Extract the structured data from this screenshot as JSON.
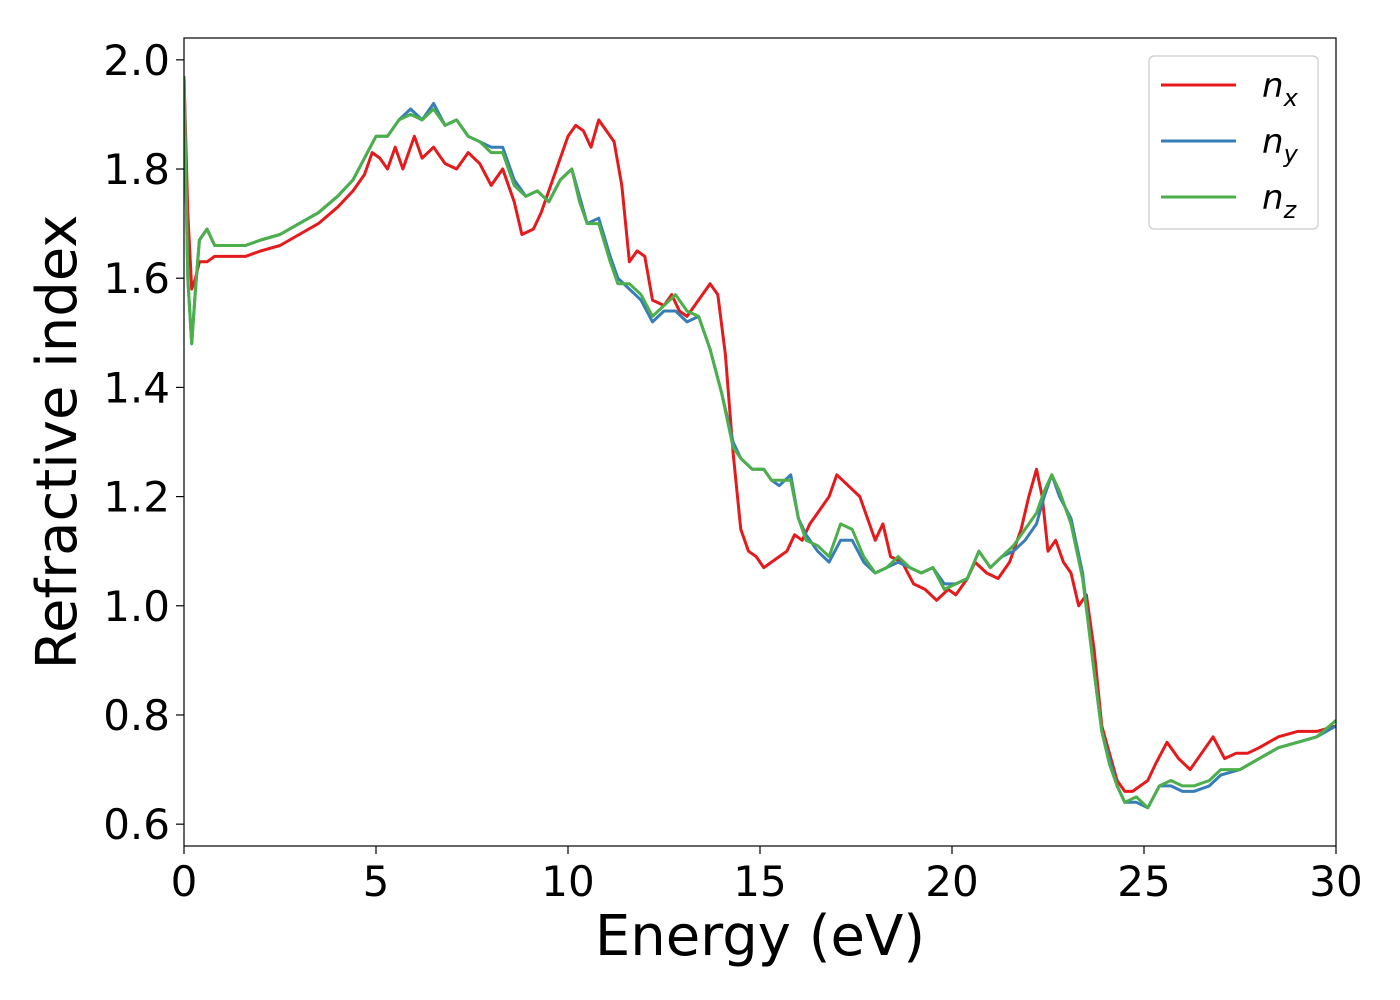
{
  "chart_data": {
    "type": "line",
    "xlabel": "Energy (eV)",
    "ylabel": "Refractive index",
    "xlim": [
      0,
      30
    ],
    "ylim": [
      0.56,
      2.04
    ],
    "xticks": [
      "0",
      "5",
      "10",
      "15",
      "20",
      "25",
      "30"
    ],
    "yticks": [
      "0.6",
      "0.8",
      "1.0",
      "1.2",
      "1.4",
      "1.6",
      "1.8",
      "2.0"
    ],
    "grid": false,
    "legend_position": "top-right",
    "series": [
      {
        "name": "n",
        "subscript": "x",
        "color": "#e41a1c",
        "points": [
          [
            0,
            1.97
          ],
          [
            0.1,
            1.72
          ],
          [
            0.2,
            1.58
          ],
          [
            0.3,
            1.6
          ],
          [
            0.4,
            1.63
          ],
          [
            0.6,
            1.63
          ],
          [
            0.8,
            1.64
          ],
          [
            1.2,
            1.64
          ],
          [
            1.6,
            1.64
          ],
          [
            2,
            1.65
          ],
          [
            2.5,
            1.66
          ],
          [
            3,
            1.68
          ],
          [
            3.5,
            1.7
          ],
          [
            4,
            1.73
          ],
          [
            4.4,
            1.76
          ],
          [
            4.7,
            1.79
          ],
          [
            4.9,
            1.83
          ],
          [
            5.1,
            1.82
          ],
          [
            5.3,
            1.8
          ],
          [
            5.5,
            1.84
          ],
          [
            5.7,
            1.8
          ],
          [
            6,
            1.86
          ],
          [
            6.2,
            1.82
          ],
          [
            6.5,
            1.84
          ],
          [
            6.8,
            1.81
          ],
          [
            7.1,
            1.8
          ],
          [
            7.4,
            1.83
          ],
          [
            7.7,
            1.81
          ],
          [
            8,
            1.77
          ],
          [
            8.3,
            1.8
          ],
          [
            8.6,
            1.74
          ],
          [
            8.8,
            1.68
          ],
          [
            9.1,
            1.69
          ],
          [
            9.3,
            1.72
          ],
          [
            9.5,
            1.76
          ],
          [
            9.7,
            1.8
          ],
          [
            10,
            1.86
          ],
          [
            10.2,
            1.88
          ],
          [
            10.4,
            1.87
          ],
          [
            10.6,
            1.84
          ],
          [
            10.8,
            1.89
          ],
          [
            11,
            1.87
          ],
          [
            11.2,
            1.85
          ],
          [
            11.4,
            1.77
          ],
          [
            11.6,
            1.63
          ],
          [
            11.8,
            1.65
          ],
          [
            12,
            1.64
          ],
          [
            12.2,
            1.56
          ],
          [
            12.5,
            1.55
          ],
          [
            12.7,
            1.57
          ],
          [
            12.9,
            1.54
          ],
          [
            13.1,
            1.53
          ],
          [
            13.3,
            1.55
          ],
          [
            13.5,
            1.57
          ],
          [
            13.7,
            1.59
          ],
          [
            13.9,
            1.57
          ],
          [
            14.1,
            1.46
          ],
          [
            14.3,
            1.28
          ],
          [
            14.5,
            1.14
          ],
          [
            14.7,
            1.1
          ],
          [
            14.9,
            1.09
          ],
          [
            15.1,
            1.07
          ],
          [
            15.3,
            1.08
          ],
          [
            15.5,
            1.09
          ],
          [
            15.7,
            1.1
          ],
          [
            15.9,
            1.13
          ],
          [
            16.1,
            1.12
          ],
          [
            16.3,
            1.15
          ],
          [
            16.5,
            1.17
          ],
          [
            16.8,
            1.2
          ],
          [
            17,
            1.24
          ],
          [
            17.3,
            1.22
          ],
          [
            17.6,
            1.2
          ],
          [
            17.8,
            1.16
          ],
          [
            18,
            1.12
          ],
          [
            18.2,
            1.15
          ],
          [
            18.4,
            1.09
          ],
          [
            18.7,
            1.08
          ],
          [
            19,
            1.04
          ],
          [
            19.3,
            1.03
          ],
          [
            19.6,
            1.01
          ],
          [
            19.9,
            1.03
          ],
          [
            20.1,
            1.02
          ],
          [
            20.4,
            1.05
          ],
          [
            20.6,
            1.08
          ],
          [
            20.9,
            1.06
          ],
          [
            21.2,
            1.05
          ],
          [
            21.5,
            1.08
          ],
          [
            21.8,
            1.14
          ],
          [
            22,
            1.2
          ],
          [
            22.2,
            1.25
          ],
          [
            22.35,
            1.2
          ],
          [
            22.5,
            1.1
          ],
          [
            22.7,
            1.12
          ],
          [
            22.9,
            1.08
          ],
          [
            23.1,
            1.06
          ],
          [
            23.3,
            1.0
          ],
          [
            23.5,
            1.02
          ],
          [
            23.7,
            0.92
          ],
          [
            23.9,
            0.78
          ],
          [
            24.1,
            0.73
          ],
          [
            24.3,
            0.68
          ],
          [
            24.5,
            0.66
          ],
          [
            24.7,
            0.66
          ],
          [
            24.9,
            0.67
          ],
          [
            25.1,
            0.68
          ],
          [
            25.3,
            0.71
          ],
          [
            25.6,
            0.75
          ],
          [
            25.9,
            0.72
          ],
          [
            26.2,
            0.7
          ],
          [
            26.5,
            0.73
          ],
          [
            26.8,
            0.76
          ],
          [
            27.1,
            0.72
          ],
          [
            27.4,
            0.73
          ],
          [
            27.7,
            0.73
          ],
          [
            28,
            0.74
          ],
          [
            28.5,
            0.76
          ],
          [
            29,
            0.77
          ],
          [
            29.5,
            0.77
          ],
          [
            30,
            0.78
          ]
        ]
      },
      {
        "name": "n",
        "subscript": "y",
        "color": "#377eb8",
        "points": [
          [
            0,
            1.97
          ],
          [
            0.1,
            1.6
          ],
          [
            0.2,
            1.48
          ],
          [
            0.3,
            1.58
          ],
          [
            0.4,
            1.67
          ],
          [
            0.6,
            1.69
          ],
          [
            0.8,
            1.66
          ],
          [
            1.2,
            1.66
          ],
          [
            1.6,
            1.66
          ],
          [
            2,
            1.67
          ],
          [
            2.5,
            1.68
          ],
          [
            3,
            1.7
          ],
          [
            3.5,
            1.72
          ],
          [
            4,
            1.75
          ],
          [
            4.4,
            1.78
          ],
          [
            4.7,
            1.82
          ],
          [
            5,
            1.86
          ],
          [
            5.3,
            1.86
          ],
          [
            5.6,
            1.89
          ],
          [
            5.9,
            1.91
          ],
          [
            6.2,
            1.89
          ],
          [
            6.5,
            1.92
          ],
          [
            6.8,
            1.88
          ],
          [
            7.1,
            1.89
          ],
          [
            7.4,
            1.86
          ],
          [
            7.7,
            1.85
          ],
          [
            8,
            1.84
          ],
          [
            8.3,
            1.84
          ],
          [
            8.6,
            1.78
          ],
          [
            8.9,
            1.75
          ],
          [
            9.2,
            1.76
          ],
          [
            9.5,
            1.74
          ],
          [
            9.8,
            1.78
          ],
          [
            10.1,
            1.8
          ],
          [
            10.3,
            1.75
          ],
          [
            10.5,
            1.7
          ],
          [
            10.8,
            1.71
          ],
          [
            11.1,
            1.64
          ],
          [
            11.3,
            1.6
          ],
          [
            11.6,
            1.58
          ],
          [
            11.9,
            1.56
          ],
          [
            12.2,
            1.52
          ],
          [
            12.5,
            1.54
          ],
          [
            12.8,
            1.54
          ],
          [
            13.1,
            1.52
          ],
          [
            13.4,
            1.53
          ],
          [
            13.7,
            1.47
          ],
          [
            14,
            1.39
          ],
          [
            14.3,
            1.3
          ],
          [
            14.5,
            1.27
          ],
          [
            14.8,
            1.25
          ],
          [
            15.1,
            1.25
          ],
          [
            15.3,
            1.23
          ],
          [
            15.5,
            1.22
          ],
          [
            15.8,
            1.24
          ],
          [
            16,
            1.16
          ],
          [
            16.2,
            1.13
          ],
          [
            16.5,
            1.1
          ],
          [
            16.8,
            1.08
          ],
          [
            17.1,
            1.12
          ],
          [
            17.4,
            1.12
          ],
          [
            17.7,
            1.08
          ],
          [
            18,
            1.06
          ],
          [
            18.3,
            1.07
          ],
          [
            18.6,
            1.08
          ],
          [
            18.9,
            1.07
          ],
          [
            19.2,
            1.06
          ],
          [
            19.5,
            1.07
          ],
          [
            19.8,
            1.04
          ],
          [
            20.1,
            1.04
          ],
          [
            20.4,
            1.05
          ],
          [
            20.7,
            1.1
          ],
          [
            21,
            1.07
          ],
          [
            21.3,
            1.09
          ],
          [
            21.6,
            1.1
          ],
          [
            21.9,
            1.12
          ],
          [
            22.2,
            1.15
          ],
          [
            22.4,
            1.2
          ],
          [
            22.6,
            1.24
          ],
          [
            22.8,
            1.2
          ],
          [
            23.1,
            1.16
          ],
          [
            23.4,
            1.06
          ],
          [
            23.7,
            0.88
          ],
          [
            23.9,
            0.77
          ],
          [
            24.1,
            0.72
          ],
          [
            24.3,
            0.67
          ],
          [
            24.5,
            0.64
          ],
          [
            24.8,
            0.64
          ],
          [
            25.1,
            0.63
          ],
          [
            25.4,
            0.67
          ],
          [
            25.7,
            0.67
          ],
          [
            26,
            0.66
          ],
          [
            26.3,
            0.66
          ],
          [
            26.7,
            0.67
          ],
          [
            27,
            0.69
          ],
          [
            27.5,
            0.7
          ],
          [
            28,
            0.72
          ],
          [
            28.5,
            0.74
          ],
          [
            29,
            0.75
          ],
          [
            29.5,
            0.76
          ],
          [
            30,
            0.78
          ]
        ]
      },
      {
        "name": "n",
        "subscript": "z",
        "color": "#4daf4a",
        "points": [
          [
            0,
            1.97
          ],
          [
            0.1,
            1.6
          ],
          [
            0.2,
            1.48
          ],
          [
            0.3,
            1.58
          ],
          [
            0.4,
            1.67
          ],
          [
            0.6,
            1.69
          ],
          [
            0.8,
            1.66
          ],
          [
            1.2,
            1.66
          ],
          [
            1.6,
            1.66
          ],
          [
            2,
            1.67
          ],
          [
            2.5,
            1.68
          ],
          [
            3,
            1.7
          ],
          [
            3.5,
            1.72
          ],
          [
            4,
            1.75
          ],
          [
            4.4,
            1.78
          ],
          [
            4.7,
            1.82
          ],
          [
            5,
            1.86
          ],
          [
            5.3,
            1.86
          ],
          [
            5.6,
            1.89
          ],
          [
            5.9,
            1.9
          ],
          [
            6.2,
            1.89
          ],
          [
            6.5,
            1.91
          ],
          [
            6.8,
            1.88
          ],
          [
            7.1,
            1.89
          ],
          [
            7.4,
            1.86
          ],
          [
            7.7,
            1.85
          ],
          [
            8,
            1.83
          ],
          [
            8.3,
            1.83
          ],
          [
            8.6,
            1.77
          ],
          [
            8.9,
            1.75
          ],
          [
            9.2,
            1.76
          ],
          [
            9.5,
            1.74
          ],
          [
            9.8,
            1.78
          ],
          [
            10.1,
            1.8
          ],
          [
            10.3,
            1.74
          ],
          [
            10.5,
            1.7
          ],
          [
            10.8,
            1.7
          ],
          [
            11.1,
            1.63
          ],
          [
            11.3,
            1.59
          ],
          [
            11.6,
            1.59
          ],
          [
            11.9,
            1.57
          ],
          [
            12.2,
            1.53
          ],
          [
            12.5,
            1.55
          ],
          [
            12.8,
            1.57
          ],
          [
            13.1,
            1.54
          ],
          [
            13.4,
            1.53
          ],
          [
            13.7,
            1.47
          ],
          [
            14,
            1.39
          ],
          [
            14.3,
            1.29
          ],
          [
            14.5,
            1.27
          ],
          [
            14.8,
            1.25
          ],
          [
            15.1,
            1.25
          ],
          [
            15.3,
            1.23
          ],
          [
            15.5,
            1.23
          ],
          [
            15.8,
            1.23
          ],
          [
            16,
            1.16
          ],
          [
            16.2,
            1.12
          ],
          [
            16.5,
            1.11
          ],
          [
            16.8,
            1.09
          ],
          [
            17.1,
            1.15
          ],
          [
            17.4,
            1.14
          ],
          [
            17.7,
            1.09
          ],
          [
            18,
            1.06
          ],
          [
            18.3,
            1.07
          ],
          [
            18.6,
            1.09
          ],
          [
            18.9,
            1.07
          ],
          [
            19.2,
            1.06
          ],
          [
            19.5,
            1.07
          ],
          [
            19.8,
            1.03
          ],
          [
            20.1,
            1.04
          ],
          [
            20.4,
            1.05
          ],
          [
            20.7,
            1.1
          ],
          [
            21,
            1.07
          ],
          [
            21.3,
            1.09
          ],
          [
            21.6,
            1.11
          ],
          [
            21.9,
            1.14
          ],
          [
            22.2,
            1.17
          ],
          [
            22.4,
            1.21
          ],
          [
            22.6,
            1.24
          ],
          [
            22.8,
            1.21
          ],
          [
            23.1,
            1.15
          ],
          [
            23.4,
            1.05
          ],
          [
            23.7,
            0.88
          ],
          [
            23.9,
            0.77
          ],
          [
            24.1,
            0.71
          ],
          [
            24.3,
            0.67
          ],
          [
            24.5,
            0.64
          ],
          [
            24.8,
            0.65
          ],
          [
            25.1,
            0.63
          ],
          [
            25.4,
            0.67
          ],
          [
            25.7,
            0.68
          ],
          [
            26,
            0.67
          ],
          [
            26.3,
            0.67
          ],
          [
            26.7,
            0.68
          ],
          [
            27,
            0.7
          ],
          [
            27.5,
            0.7
          ],
          [
            28,
            0.72
          ],
          [
            28.5,
            0.74
          ],
          [
            29,
            0.75
          ],
          [
            29.5,
            0.76
          ],
          [
            30,
            0.79
          ]
        ]
      }
    ]
  }
}
